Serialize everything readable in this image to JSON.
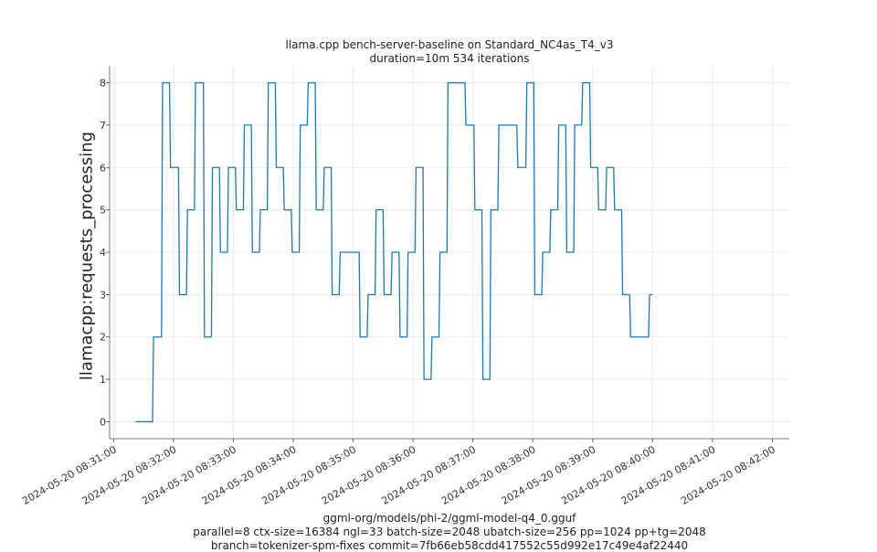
{
  "title": "llama.cpp bench-server-baseline on Standard_NC4as_T4_v3",
  "subtitle": "duration=10m 534 iterations",
  "footer": [
    "ggml-org/models/phi-2/ggml-model-q4_0.gguf",
    "parallel=8 ctx-size=16384 ngl=33 batch-size=2048 ubatch-size=256 pp=1024 pp+tg=2048",
    "branch=tokenizer-spm-fixes commit=7fb66eb58cdd417552c55d992e17c49e4af22440"
  ],
  "chart_data": {
    "type": "line",
    "title": "llama.cpp bench-server-baseline on Standard_NC4as_T4_v3",
    "subtitle": "duration=10m 534 iterations",
    "xlabel": "",
    "ylabel": "llamacpp:requests_processing",
    "xlim": [
      "2024-05-20 08:30:56",
      "2024-05-20 08:42:17"
    ],
    "ylim": [
      -0.4,
      8.4
    ],
    "grid": true,
    "line_color": "#1f77b4",
    "x_ticks": [
      "2024-05-20 08:31:00",
      "2024-05-20 08:32:00",
      "2024-05-20 08:33:00",
      "2024-05-20 08:34:00",
      "2024-05-20 08:35:00",
      "2024-05-20 08:36:00",
      "2024-05-20 08:37:00",
      "2024-05-20 08:38:00",
      "2024-05-20 08:39:00",
      "2024-05-20 08:40:00",
      "2024-05-20 08:41:00",
      "2024-05-20 08:42:00"
    ],
    "y_ticks": [
      0,
      1,
      2,
      3,
      4,
      5,
      6,
      7,
      8
    ],
    "series": [
      {
        "values": [
          [
            "2024-05-20 08:31:22",
            0
          ],
          [
            "2024-05-20 08:31:39",
            0
          ],
          [
            "2024-05-20 08:31:40",
            2
          ],
          [
            "2024-05-20 08:31:48",
            2
          ],
          [
            "2024-05-20 08:31:49",
            8
          ],
          [
            "2024-05-20 08:31:56",
            8
          ],
          [
            "2024-05-20 08:31:57",
            6
          ],
          [
            "2024-05-20 08:32:05",
            6
          ],
          [
            "2024-05-20 08:32:06",
            3
          ],
          [
            "2024-05-20 08:32:13",
            3
          ],
          [
            "2024-05-20 08:32:14",
            5
          ],
          [
            "2024-05-20 08:32:21",
            5
          ],
          [
            "2024-05-20 08:32:22",
            8
          ],
          [
            "2024-05-20 08:32:30",
            8
          ],
          [
            "2024-05-20 08:32:31",
            2
          ],
          [
            "2024-05-20 08:32:38",
            2
          ],
          [
            "2024-05-20 08:32:39",
            6
          ],
          [
            "2024-05-20 08:32:46",
            6
          ],
          [
            "2024-05-20 08:32:47",
            4
          ],
          [
            "2024-05-20 08:32:54",
            4
          ],
          [
            "2024-05-20 08:32:55",
            6
          ],
          [
            "2024-05-20 08:33:02",
            6
          ],
          [
            "2024-05-20 08:33:03",
            5
          ],
          [
            "2024-05-20 08:33:10",
            5
          ],
          [
            "2024-05-20 08:33:11",
            7
          ],
          [
            "2024-05-20 08:33:18",
            7
          ],
          [
            "2024-05-20 08:33:19",
            4
          ],
          [
            "2024-05-20 08:33:26",
            4
          ],
          [
            "2024-05-20 08:33:27",
            5
          ],
          [
            "2024-05-20 08:33:34",
            5
          ],
          [
            "2024-05-20 08:33:35",
            8
          ],
          [
            "2024-05-20 08:33:42",
            8
          ],
          [
            "2024-05-20 08:33:43",
            6
          ],
          [
            "2024-05-20 08:33:50",
            6
          ],
          [
            "2024-05-20 08:33:51",
            5
          ],
          [
            "2024-05-20 08:33:58",
            5
          ],
          [
            "2024-05-20 08:33:59",
            4
          ],
          [
            "2024-05-20 08:34:06",
            4
          ],
          [
            "2024-05-20 08:34:07",
            7
          ],
          [
            "2024-05-20 08:34:14",
            7
          ],
          [
            "2024-05-20 08:34:15",
            8
          ],
          [
            "2024-05-20 08:34:22",
            8
          ],
          [
            "2024-05-20 08:34:23",
            5
          ],
          [
            "2024-05-20 08:34:30",
            5
          ],
          [
            "2024-05-20 08:34:31",
            6
          ],
          [
            "2024-05-20 08:34:38",
            6
          ],
          [
            "2024-05-20 08:34:39",
            3
          ],
          [
            "2024-05-20 08:34:46",
            3
          ],
          [
            "2024-05-20 08:34:47",
            4
          ],
          [
            "2024-05-20 08:35:06",
            4
          ],
          [
            "2024-05-20 08:35:07",
            2
          ],
          [
            "2024-05-20 08:35:14",
            2
          ],
          [
            "2024-05-20 08:35:15",
            3
          ],
          [
            "2024-05-20 08:35:22",
            3
          ],
          [
            "2024-05-20 08:35:23",
            5
          ],
          [
            "2024-05-20 08:35:30",
            5
          ],
          [
            "2024-05-20 08:35:31",
            3
          ],
          [
            "2024-05-20 08:35:38",
            3
          ],
          [
            "2024-05-20 08:35:39",
            4
          ],
          [
            "2024-05-20 08:35:46",
            4
          ],
          [
            "2024-05-20 08:35:47",
            2
          ],
          [
            "2024-05-20 08:35:54",
            2
          ],
          [
            "2024-05-20 08:35:55",
            4
          ],
          [
            "2024-05-20 08:36:02",
            4
          ],
          [
            "2024-05-20 08:36:03",
            6
          ],
          [
            "2024-05-20 08:36:10",
            6
          ],
          [
            "2024-05-20 08:36:11",
            1
          ],
          [
            "2024-05-20 08:36:18",
            1
          ],
          [
            "2024-05-20 08:36:19",
            2
          ],
          [
            "2024-05-20 08:36:26",
            2
          ],
          [
            "2024-05-20 08:36:27",
            4
          ],
          [
            "2024-05-20 08:36:34",
            4
          ],
          [
            "2024-05-20 08:36:35",
            8
          ],
          [
            "2024-05-20 08:36:52",
            8
          ],
          [
            "2024-05-20 08:36:53",
            7
          ],
          [
            "2024-05-20 08:37:01",
            7
          ],
          [
            "2024-05-20 08:37:02",
            5
          ],
          [
            "2024-05-20 08:37:09",
            5
          ],
          [
            "2024-05-20 08:37:10",
            1
          ],
          [
            "2024-05-20 08:37:17",
            1
          ],
          [
            "2024-05-20 08:37:18",
            5
          ],
          [
            "2024-05-20 08:37:25",
            5
          ],
          [
            "2024-05-20 08:37:26",
            7
          ],
          [
            "2024-05-20 08:37:44",
            7
          ],
          [
            "2024-05-20 08:37:45",
            6
          ],
          [
            "2024-05-20 08:37:53",
            6
          ],
          [
            "2024-05-20 08:37:54",
            8
          ],
          [
            "2024-05-20 08:38:01",
            8
          ],
          [
            "2024-05-20 08:38:02",
            3
          ],
          [
            "2024-05-20 08:38:09",
            3
          ],
          [
            "2024-05-20 08:38:10",
            4
          ],
          [
            "2024-05-20 08:38:17",
            4
          ],
          [
            "2024-05-20 08:38:18",
            5
          ],
          [
            "2024-05-20 08:38:25",
            5
          ],
          [
            "2024-05-20 08:38:26",
            7
          ],
          [
            "2024-05-20 08:38:33",
            7
          ],
          [
            "2024-05-20 08:38:34",
            4
          ],
          [
            "2024-05-20 08:38:41",
            4
          ],
          [
            "2024-05-20 08:38:42",
            7
          ],
          [
            "2024-05-20 08:38:49",
            7
          ],
          [
            "2024-05-20 08:38:50",
            8
          ],
          [
            "2024-05-20 08:38:57",
            8
          ],
          [
            "2024-05-20 08:38:58",
            6
          ],
          [
            "2024-05-20 08:39:05",
            6
          ],
          [
            "2024-05-20 08:39:06",
            5
          ],
          [
            "2024-05-20 08:39:13",
            5
          ],
          [
            "2024-05-20 08:39:14",
            6
          ],
          [
            "2024-05-20 08:39:21",
            6
          ],
          [
            "2024-05-20 08:39:22",
            5
          ],
          [
            "2024-05-20 08:39:29",
            5
          ],
          [
            "2024-05-20 08:39:30",
            3
          ],
          [
            "2024-05-20 08:39:37",
            3
          ],
          [
            "2024-05-20 08:39:38",
            2
          ],
          [
            "2024-05-20 08:39:56",
            2
          ],
          [
            "2024-05-20 08:39:57",
            3
          ],
          [
            "2024-05-20 08:40:00",
            3
          ]
        ]
      }
    ]
  }
}
